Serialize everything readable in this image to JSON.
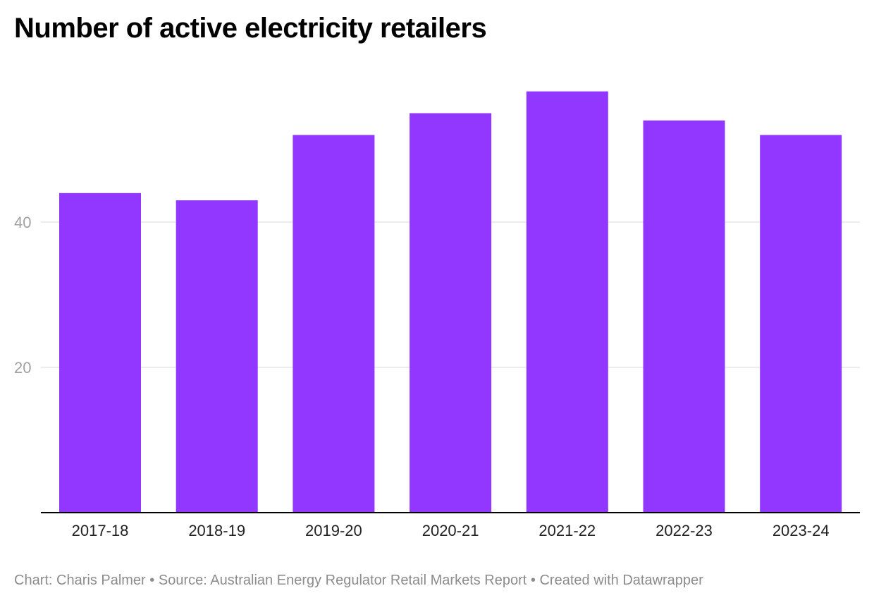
{
  "chart_data": {
    "type": "bar",
    "title": "Number of active electricity retailers",
    "categories": [
      "2017-18",
      "2018-19",
      "2019-20",
      "2020-21",
      "2021-22",
      "2022-23",
      "2023-24"
    ],
    "values": [
      44,
      43,
      52,
      55,
      58,
      54,
      52
    ],
    "xlabel": "",
    "ylabel": "",
    "ylim": [
      0,
      58
    ],
    "yticks": [
      20,
      40
    ],
    "ytick_labels": [
      "20",
      "40"
    ],
    "grid": true,
    "colors": {
      "bar": "#9237ff",
      "grid": "#e6e6e6",
      "axis": "#000000",
      "ytick_text": "#a0a0a0",
      "xtick_text": "#222222"
    }
  },
  "footer": {
    "credit": "Chart: Charis Palmer",
    "separator": "•",
    "source": "Source: Australian Energy Regulator Retail Markets Report",
    "made_with": "Created with Datawrapper"
  }
}
